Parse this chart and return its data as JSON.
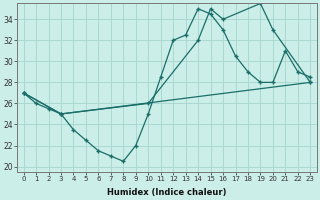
{
  "xlabel": "Humidex (Indice chaleur)",
  "bg_color": "#cceee8",
  "grid_color": "#aad8d0",
  "line_color": "#1a6e6a",
  "xlim": [
    -0.5,
    23.5
  ],
  "ylim": [
    19.5,
    35.5
  ],
  "xticks": [
    0,
    1,
    2,
    3,
    4,
    5,
    6,
    7,
    8,
    9,
    10,
    11,
    12,
    13,
    14,
    15,
    16,
    17,
    18,
    19,
    20,
    21,
    22,
    23
  ],
  "yticks": [
    20,
    22,
    24,
    26,
    28,
    30,
    32,
    34
  ],
  "line1_x": [
    0,
    1,
    2,
    3,
    4,
    5,
    6,
    7,
    8,
    9,
    10,
    11,
    12,
    13,
    14,
    15,
    16,
    17,
    18,
    19,
    20,
    21,
    22,
    23
  ],
  "line1_y": [
    27,
    26,
    25.5,
    25,
    23.5,
    22.5,
    21.5,
    21,
    20.5,
    22,
    25,
    28.5,
    32,
    32.5,
    35,
    34.5,
    33,
    30.5,
    29,
    28,
    28,
    31,
    29,
    28.5
  ],
  "line2_x": [
    0,
    3,
    10,
    14,
    15,
    16,
    19,
    20,
    23
  ],
  "line2_y": [
    27,
    25,
    26,
    32,
    35,
    34,
    35.5,
    33,
    28
  ],
  "line3_x": [
    0,
    3,
    23
  ],
  "line3_y": [
    27,
    25,
    28
  ]
}
